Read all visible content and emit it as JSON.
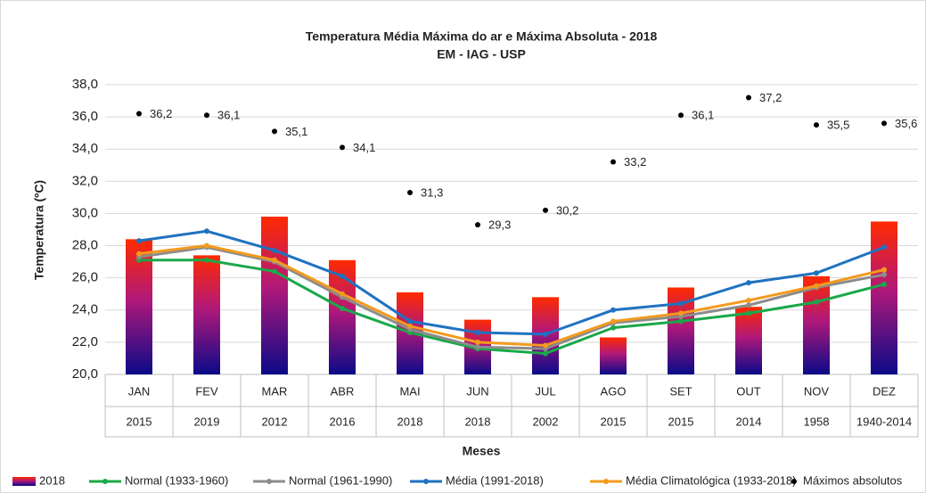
{
  "chart_data": {
    "type": "bar_line",
    "title": "Temperatura Média Máxima do ar e Máxima Absoluta - 2018",
    "subtitle": "EM - IAG - USP",
    "x_label": "Meses",
    "y_label": "Temperatura (ºC)",
    "categories": [
      "JAN",
      "FEV",
      "MAR",
      "ABR",
      "MAI",
      "JUN",
      "JUL",
      "AGO",
      "SET",
      "OUT",
      "NOV",
      "DEZ"
    ],
    "category_years": [
      "2015",
      "2019",
      "2012",
      "2016",
      "2018",
      "2018",
      "2002",
      "2015",
      "2015",
      "2014",
      "1958",
      "1940-2014"
    ],
    "ylim": [
      20,
      38
    ],
    "yticks": [
      {
        "value": 20,
        "label": "20,0"
      },
      {
        "value": 22,
        "label": "22,0"
      },
      {
        "value": 24,
        "label": "24,0"
      },
      {
        "value": 26,
        "label": "26,0"
      },
      {
        "value": 28,
        "label": "28,0"
      },
      {
        "value": 30,
        "label": "30,0"
      },
      {
        "value": 32,
        "label": "32,0"
      },
      {
        "value": 34,
        "label": "34,0"
      },
      {
        "value": 36,
        "label": "36,0"
      },
      {
        "value": 38,
        "label": "38,0"
      }
    ],
    "grid": true,
    "legend": "bottom",
    "series": [
      {
        "name": "2018",
        "kind": "bar",
        "color": "#ff2a00",
        "values": [
          28.4,
          27.4,
          29.8,
          27.1,
          25.1,
          23.4,
          24.8,
          22.3,
          25.4,
          24.2,
          26.1,
          29.5
        ]
      },
      {
        "name": "Normal (1933-1960)",
        "kind": "line",
        "color": "#1aa84a",
        "values": [
          27.1,
          27.1,
          26.4,
          24.1,
          22.6,
          21.6,
          21.3,
          22.9,
          23.3,
          23.8,
          24.5,
          25.6
        ]
      },
      {
        "name": "Normal (1961-1990)",
        "kind": "line",
        "color": "#8c8c8c",
        "values": [
          27.3,
          27.9,
          27.0,
          24.8,
          22.8,
          21.7,
          21.6,
          23.2,
          23.6,
          24.3,
          25.4,
          26.2
        ]
      },
      {
        "name": "Média (1991-2018)",
        "kind": "line",
        "color": "#1f72c0",
        "values": [
          28.3,
          28.9,
          27.7,
          26.1,
          23.3,
          22.6,
          22.5,
          24.0,
          24.4,
          25.7,
          26.3,
          27.9
        ]
      },
      {
        "name": "Média Climatológica (1933-2018)",
        "kind": "line",
        "color": "#f39a1e",
        "values": [
          27.5,
          28.0,
          27.1,
          25.0,
          23.0,
          22.0,
          21.8,
          23.3,
          23.8,
          24.6,
          25.5,
          26.5
        ]
      },
      {
        "name": "Máximos absolutos",
        "kind": "point",
        "color": "#000000",
        "values": [
          36.2,
          36.1,
          35.1,
          34.1,
          31.3,
          29.3,
          30.2,
          33.2,
          36.1,
          37.2,
          35.5,
          35.6
        ],
        "value_labels": [
          "36,2",
          "36,1",
          "35,1",
          "34,1",
          "31,3",
          "29,3",
          "30,2",
          "33,2",
          "36,1",
          "37,2",
          "35,5",
          "35,6"
        ]
      }
    ]
  }
}
